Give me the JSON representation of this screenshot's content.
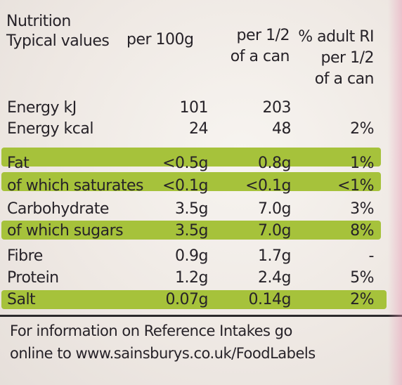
{
  "header": {
    "title_line1": "Nutrition",
    "title_line2": "Typical values",
    "col1": "per 100g",
    "col2_line1": "per 1/2",
    "col2_line2": "of a can",
    "col3_line1": "% adult RI",
    "col3_line2": "per 1/2",
    "col3_line3": "of a can"
  },
  "rows": [
    {
      "name": "Energy kJ",
      "per100": "101",
      "perhalf": "203",
      "ri": "",
      "highlight": false
    },
    {
      "name": "Energy kcal",
      "per100": "24",
      "perhalf": "48",
      "ri": "2%",
      "highlight": false
    },
    {
      "name": "Fat",
      "per100": "<0.5g",
      "perhalf": "0.8g",
      "ri": "1%",
      "highlight": true
    },
    {
      "name": "of which saturates",
      "per100": "<0.1g",
      "perhalf": "<0.1g",
      "ri": "<1%",
      "highlight": true
    },
    {
      "name": "Carbohydrate",
      "per100": "3.5g",
      "perhalf": "7.0g",
      "ri": "3%",
      "highlight": false
    },
    {
      "name": "of which sugars",
      "per100": "3.5g",
      "perhalf": "7.0g",
      "ri": "8%",
      "highlight": true
    },
    {
      "name": "Fibre",
      "per100": "0.9g",
      "perhalf": "1.7g",
      "ri": "-",
      "highlight": false
    },
    {
      "name": "Protein",
      "per100": "1.2g",
      "perhalf": "2.4g",
      "ri": "5%",
      "highlight": false
    },
    {
      "name": "Salt",
      "per100": "0.07g",
      "perhalf": "0.14g",
      "ri": "2%",
      "highlight": true
    }
  ],
  "footer": {
    "line1": "For information on Reference Intakes go",
    "line2": "online to www.sainsburys.co.uk/FoodLabels"
  },
  "colors": {
    "highlight": "#a6c23b",
    "text": "#262228",
    "background": "#f2eeea"
  }
}
